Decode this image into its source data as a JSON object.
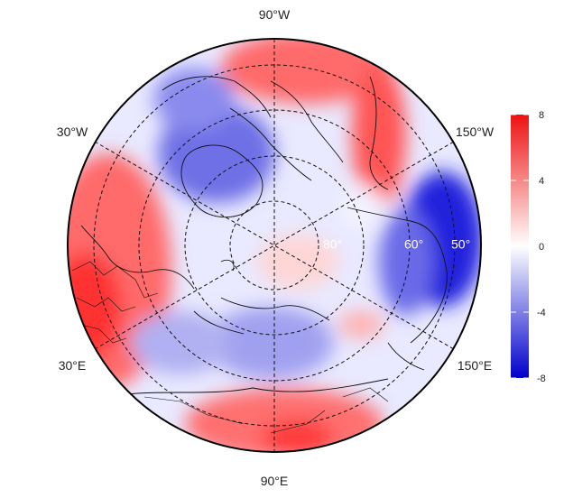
{
  "map": {
    "projection": "north polar stereographic",
    "longitude_labels": {
      "top": "90°W",
      "upper_left": "30°W",
      "upper_right": "150°W",
      "lower_left": "30°E",
      "lower_right": "150°E",
      "bottom": "90°E"
    },
    "latitude_labels": [
      "80°",
      "60°",
      "50°"
    ],
    "graticule": "dashed",
    "coastlines": "on",
    "country_borders": "on"
  },
  "colorbar": {
    "ticks": [
      "8",
      "4",
      "0",
      "-4",
      "-8"
    ],
    "min": -8,
    "max": 8,
    "low_color": "#0000cc",
    "mid_color": "#ffffff",
    "high_color": "#ee1111"
  }
}
